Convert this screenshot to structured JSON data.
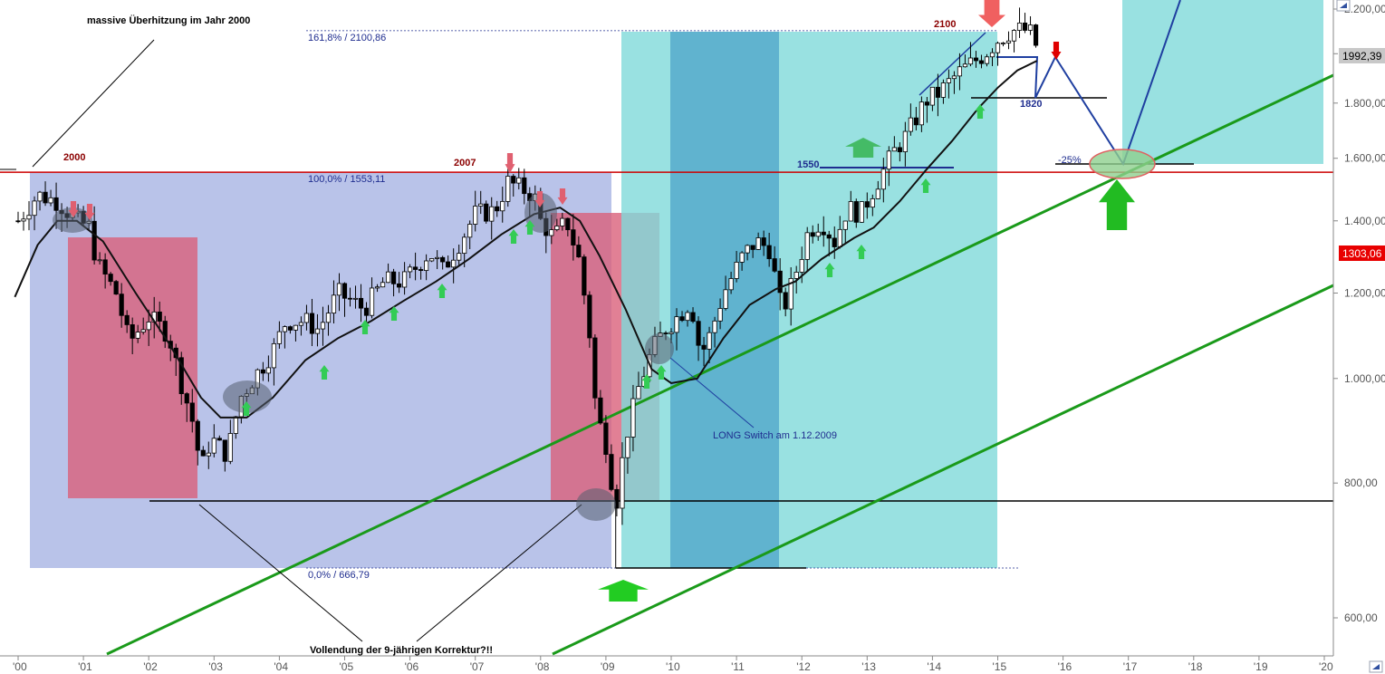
{
  "chart_data": {
    "type": "candlestick",
    "title": "",
    "x_axis": {
      "ticks": [
        "'00",
        "'01",
        "'02",
        "'03",
        "'04",
        "'05",
        "'06",
        "'07",
        "'08",
        "'09",
        "'10",
        "'11",
        "'12",
        "'13",
        "'14",
        "'15",
        "'16",
        "'17",
        "'18",
        "'19",
        "'20"
      ]
    },
    "y_axis": {
      "scale": "log",
      "range": [
        550,
        2250
      ],
      "ticks": [
        "2.200,00",
        "2.000,00",
        "1.800,00",
        "1.600,00",
        "1.400,00",
        "1.200,00",
        "1.000,00",
        "800,00",
        "600,00"
      ]
    },
    "price_tags": [
      {
        "text": "1992,39",
        "value": 1992.39,
        "color": "#c8c8c8"
      },
      {
        "text": "1303,06",
        "value": 1303.06,
        "color": "#e80000"
      }
    ],
    "fib_levels": [
      {
        "text": "161,8% / 2100,86",
        "value": 2100.86
      },
      {
        "text": "100,0% / 1553,11",
        "value": 1553.11
      },
      {
        "text": "0,0% / 666,79",
        "value": 666.79
      }
    ],
    "annotations": [
      {
        "text": "massive Überhitzung im Jahr 2000"
      },
      {
        "text": "2000"
      },
      {
        "text": "2007"
      },
      {
        "text": "2100"
      },
      {
        "text": "1550"
      },
      {
        "text": "1820"
      },
      {
        "text": "-25%"
      },
      {
        "text": "LONG Switch am 1.12.2009"
      },
      {
        "text": "Vollendung der 9-jährigen Korrektur?!!"
      }
    ],
    "series": [
      {
        "kind": "monthly-candles",
        "path": [
          [
            "2000.0",
            1400
          ],
          [
            "2000.3",
            1480
          ],
          [
            "2000.6",
            1460
          ],
          [
            "2000.9",
            1400
          ],
          [
            "2001.1",
            1380
          ],
          [
            "2001.2",
            1280
          ],
          [
            "2001.5",
            1200
          ],
          [
            "2001.7",
            1080
          ],
          [
            "2001.8",
            1100
          ],
          [
            "2002.0",
            1140
          ],
          [
            "2002.3",
            1100
          ],
          [
            "2002.5",
            990
          ],
          [
            "2002.7",
            900
          ],
          [
            "2002.8",
            820
          ],
          [
            "2002.95",
            880
          ],
          [
            "2003.2",
            850
          ],
          [
            "2003.4",
            960
          ],
          [
            "2003.6",
            1000
          ],
          [
            "2003.9",
            1060
          ],
          [
            "2004.1",
            1130
          ],
          [
            "2004.4",
            1130
          ],
          [
            "2004.6",
            1110
          ],
          [
            "2004.9",
            1200
          ],
          [
            "2005.1",
            1180
          ],
          [
            "2005.3",
            1160
          ],
          [
            "2005.6",
            1230
          ],
          [
            "2005.9",
            1230
          ],
          [
            "2006.1",
            1270
          ],
          [
            "2006.3",
            1310
          ],
          [
            "2006.5",
            1260
          ],
          [
            "2006.8",
            1350
          ],
          [
            "2007.0",
            1420
          ],
          [
            "2007.3",
            1430
          ],
          [
            "2007.5",
            1520
          ],
          [
            "2007.7",
            1500
          ],
          [
            "2007.9",
            1480
          ],
          [
            "2008.0",
            1400
          ],
          [
            "2008.2",
            1350
          ],
          [
            "2008.4",
            1400
          ],
          [
            "2008.6",
            1280
          ],
          [
            "2008.75",
            1100
          ],
          [
            "2008.85",
            930
          ],
          [
            "2009.0",
            870
          ],
          [
            "2009.15",
            760
          ],
          [
            "2009.3",
            880
          ],
          [
            "2009.5",
            980
          ],
          [
            "2009.7",
            1060
          ],
          [
            "2009.9",
            1110
          ],
          [
            "2010.15",
            1150
          ],
          [
            "2010.3",
            1180
          ],
          [
            "2010.45",
            1050
          ],
          [
            "2010.6",
            1100
          ],
          [
            "2010.8",
            1200
          ],
          [
            "2011.1",
            1300
          ],
          [
            "2011.3",
            1340
          ],
          [
            "2011.5",
            1320
          ],
          [
            "2011.7",
            1150
          ],
          [
            "2011.9",
            1250
          ],
          [
            "2012.1",
            1370
          ],
          [
            "2012.3",
            1400
          ],
          [
            "2012.5",
            1340
          ],
          [
            "2012.7",
            1440
          ],
          [
            "2012.9",
            1420
          ],
          [
            "2013.1",
            1500
          ],
          [
            "2013.4",
            1620
          ],
          [
            "2013.6",
            1680
          ],
          [
            "2013.9",
            1810
          ],
          [
            "2014.1",
            1840
          ],
          [
            "2014.4",
            1920
          ],
          [
            "2014.6",
            1960
          ],
          [
            "2014.8",
            2000
          ],
          [
            "2015.0",
            2060
          ],
          [
            "2015.2",
            2100
          ],
          [
            "2015.4",
            2105
          ],
          [
            "2015.55",
            2080
          ],
          [
            "2015.62",
            1992
          ]
        ]
      },
      {
        "kind": "moving-average",
        "path": [
          [
            "1999.95",
            1190
          ],
          [
            "2000.3",
            1330
          ],
          [
            "2000.6",
            1400
          ],
          [
            "2000.9",
            1400
          ],
          [
            "2001.3",
            1340
          ],
          [
            "2001.8",
            1200
          ],
          [
            "2002.3",
            1080
          ],
          [
            "2002.8",
            960
          ],
          [
            "2003.1",
            920
          ],
          [
            "2003.5",
            920
          ],
          [
            "2003.9",
            960
          ],
          [
            "2004.4",
            1040
          ],
          [
            "2004.9",
            1090
          ],
          [
            "2005.4",
            1130
          ],
          [
            "2005.9",
            1180
          ],
          [
            "2006.4",
            1230
          ],
          [
            "2006.9",
            1290
          ],
          [
            "2007.4",
            1360
          ],
          [
            "2007.9",
            1420
          ],
          [
            "2008.3",
            1440
          ],
          [
            "2008.6",
            1400
          ],
          [
            "2008.9",
            1300
          ],
          [
            "2009.3",
            1160
          ],
          [
            "2009.7",
            1020
          ],
          [
            "2010.0",
            990
          ],
          [
            "2010.4",
            1000
          ],
          [
            "2010.8",
            1090
          ],
          [
            "2011.2",
            1170
          ],
          [
            "2011.6",
            1210
          ],
          [
            "2011.9",
            1230
          ],
          [
            "2012.3",
            1290
          ],
          [
            "2012.8",
            1350
          ],
          [
            "2013.1",
            1380
          ],
          [
            "2013.5",
            1460
          ],
          [
            "2013.9",
            1560
          ],
          [
            "2014.3",
            1660
          ],
          [
            "2014.7",
            1780
          ],
          [
            "2015.0",
            1860
          ],
          [
            "2015.3",
            1930
          ],
          [
            "2015.6",
            1970
          ]
        ]
      }
    ],
    "legend": "none",
    "grid": false
  }
}
